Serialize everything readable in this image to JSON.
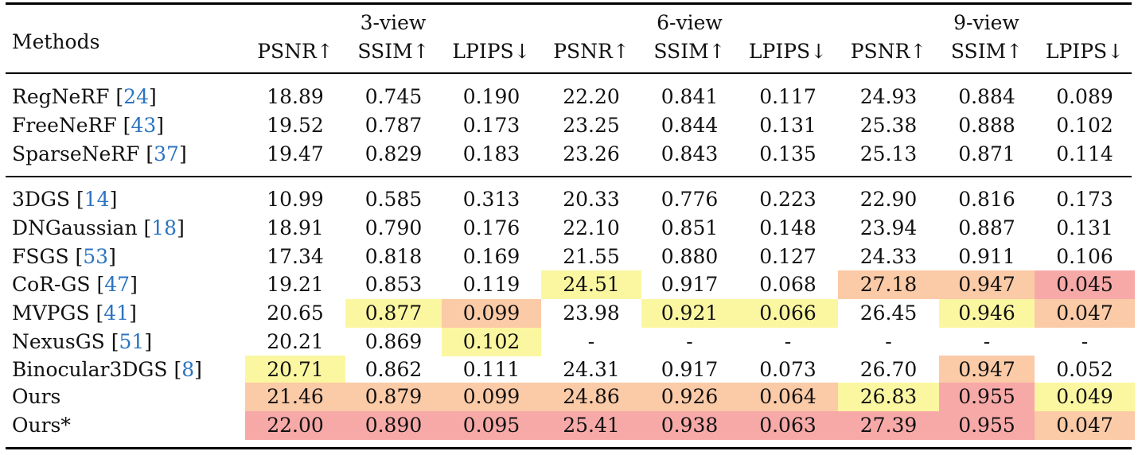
{
  "colors": {
    "first": "#f7a9a8",
    "second": "#fbcaa6",
    "third": "#fbf7a1",
    "reference": "#2b74c0"
  },
  "header": {
    "methods_label": "Methods",
    "groups": [
      "3-view",
      "6-view",
      "9-view"
    ],
    "metrics": [
      "PSNR↑",
      "SSIM↑",
      "LPIPS↓",
      "PSNR↑",
      "SSIM↑",
      "LPIPS↓",
      "PSNR↑",
      "SSIM↑",
      "LPIPS↓"
    ]
  },
  "rows": [
    {
      "method": "RegNeRF [",
      "ref": "24",
      "close": "]",
      "values": [
        "18.89",
        "0.745",
        "0.190",
        "22.20",
        "0.841",
        "0.117",
        "24.93",
        "0.884",
        "0.089"
      ],
      "highlights": [
        "",
        "",
        "",
        "",
        "",
        "",
        "",
        "",
        ""
      ]
    },
    {
      "method": "FreeNeRF [",
      "ref": "43",
      "close": "]",
      "values": [
        "19.52",
        "0.787",
        "0.173",
        "23.25",
        "0.844",
        "0.131",
        "25.38",
        "0.888",
        "0.102"
      ],
      "highlights": [
        "",
        "",
        "",
        "",
        "",
        "",
        "",
        "",
        ""
      ]
    },
    {
      "method": "SparseNeRF [",
      "ref": "37",
      "close": "]",
      "values": [
        "19.47",
        "0.829",
        "0.183",
        "23.26",
        "0.843",
        "0.135",
        "25.13",
        "0.871",
        "0.114"
      ],
      "highlights": [
        "",
        "",
        "",
        "",
        "",
        "",
        "",
        "",
        ""
      ]
    },
    {
      "method": "3DGS [",
      "ref": "14",
      "close": "]",
      "values": [
        "10.99",
        "0.585",
        "0.313",
        "20.33",
        "0.776",
        "0.223",
        "22.90",
        "0.816",
        "0.173"
      ],
      "highlights": [
        "",
        "",
        "",
        "",
        "",
        "",
        "",
        "",
        ""
      ]
    },
    {
      "method": "DNGaussian [",
      "ref": "18",
      "close": "]",
      "values": [
        "18.91",
        "0.790",
        "0.176",
        "22.10",
        "0.851",
        "0.148",
        "23.94",
        "0.887",
        "0.131"
      ],
      "highlights": [
        "",
        "",
        "",
        "",
        "",
        "",
        "",
        "",
        ""
      ]
    },
    {
      "method": "FSGS [",
      "ref": "53",
      "close": "]",
      "values": [
        "17.34",
        "0.818",
        "0.169",
        "21.55",
        "0.880",
        "0.127",
        "24.33",
        "0.911",
        "0.106"
      ],
      "highlights": [
        "",
        "",
        "",
        "",
        "",
        "",
        "",
        "",
        ""
      ]
    },
    {
      "method": "CoR-GS [",
      "ref": "47",
      "close": "]",
      "values": [
        "19.21",
        "0.853",
        "0.119",
        "24.51",
        "0.917",
        "0.068",
        "27.18",
        "0.947",
        "0.045"
      ],
      "highlights": [
        "",
        "",
        "",
        "third",
        "",
        "",
        "second",
        "second",
        "first"
      ]
    },
    {
      "method": "MVPGS [",
      "ref": "41",
      "close": "]",
      "values": [
        "20.65",
        "0.877",
        "0.099",
        "23.98",
        "0.921",
        "0.066",
        "26.45",
        "0.946",
        "0.047"
      ],
      "highlights": [
        "",
        "third",
        "second",
        "",
        "third",
        "third",
        "",
        "third",
        "second"
      ]
    },
    {
      "method": "NexusGS [",
      "ref": "51",
      "close": "]",
      "values": [
        "20.21",
        "0.869",
        "0.102",
        "-",
        "-",
        "-",
        "-",
        "-",
        "-"
      ],
      "highlights": [
        "",
        "",
        "third",
        "",
        "",
        "",
        "",
        "",
        ""
      ]
    },
    {
      "method": "Binocular3DGS [",
      "ref": "8",
      "close": "]",
      "values": [
        "20.71",
        "0.862",
        "0.111",
        "24.31",
        "0.917",
        "0.073",
        "26.70",
        "0.947",
        "0.052"
      ],
      "highlights": [
        "third",
        "",
        "",
        "",
        "",
        "",
        "",
        "second",
        ""
      ]
    },
    {
      "method": "Ours",
      "ref": "",
      "close": "",
      "values": [
        "21.46",
        "0.879",
        "0.099",
        "24.86",
        "0.926",
        "0.064",
        "26.83",
        "0.955",
        "0.049"
      ],
      "highlights": [
        "second",
        "second",
        "second",
        "second",
        "second",
        "second",
        "third",
        "first",
        "third"
      ]
    },
    {
      "method": "Ours*",
      "ref": "",
      "close": "",
      "values": [
        "22.00",
        "0.890",
        "0.095",
        "25.41",
        "0.938",
        "0.063",
        "27.39",
        "0.955",
        "0.047"
      ],
      "highlights": [
        "first",
        "first",
        "first",
        "first",
        "first",
        "first",
        "first",
        "first",
        "second"
      ]
    }
  ]
}
